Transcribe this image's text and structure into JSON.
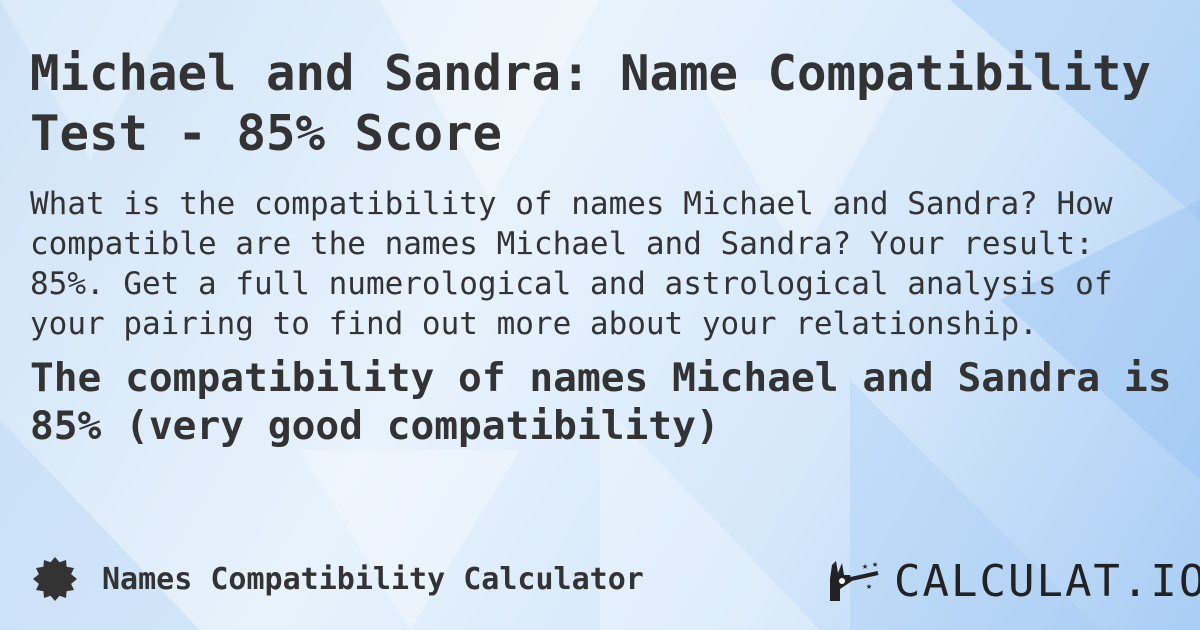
{
  "title": "Michael and Sandra: Name Compatibility Test - 85% Score",
  "description": "What is the compatibility of names Michael and Sandra? How compatible are the names Michael and Sandra? Your result: 85%. Get a full numerological and astrological analysis of your pairing to find out more about your relationship.",
  "result": "The compatibility of names Michael and Sandra is 85% (very good compatibility)",
  "score_percent": 85,
  "footer": {
    "calculator_name": "Names Compatibility Calculator",
    "icon": "badge-star-icon"
  },
  "logo": {
    "text": "CALCULAT.IO",
    "icon": "magic-wand-hand-icon"
  },
  "colors": {
    "text": "#333333",
    "background": "#d8e9fa"
  }
}
